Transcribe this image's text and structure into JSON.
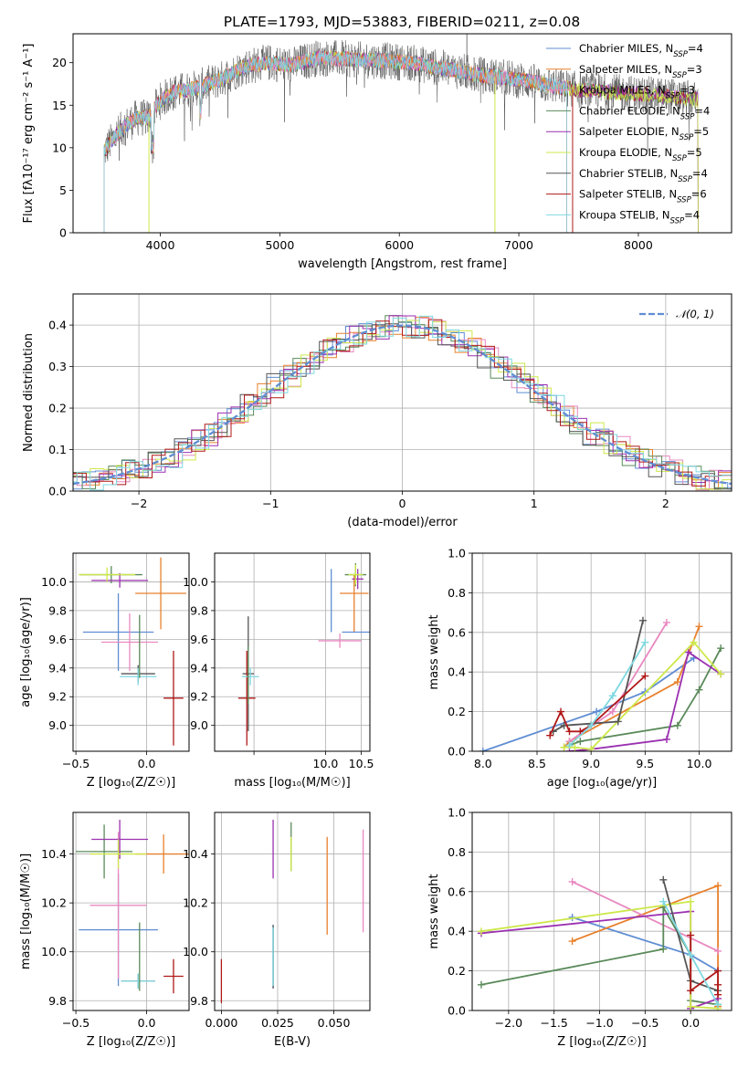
{
  "colors": {
    "chabrier_miles": "#5f8dd3",
    "salpeter_miles": "#e8802c",
    "kroupa_miles": "#e888c0",
    "chabrier_elodie": "#5a8a5a",
    "salpeter_elodie": "#9b30b0",
    "kroupa_elodie": "#cde84a",
    "chabrier_stelib": "#555555",
    "salpeter_stelib": "#b01818",
    "kroupa_stelib": "#7fd8e0",
    "normal_fit": "#5f8dd3"
  },
  "chart_data": [
    {
      "id": "spectrum",
      "type": "line",
      "title": "PLATE=1793, MJD=53883, FIBERID=0211, z=0.08",
      "xlabel": "wavelength [Angstrom, rest frame]",
      "ylabel": "Flux [fλ10⁻¹⁷ erg cm⁻² s⁻¹ A⁻¹]",
      "xlim": [
        3270,
        8780
      ],
      "ylim": [
        0,
        23.4
      ],
      "xticks": [
        4000,
        5000,
        6000,
        7000,
        8000
      ],
      "yticks": [
        0,
        5,
        10,
        15,
        20
      ],
      "grid": false,
      "legend_position": "upper right",
      "envelope": [
        [
          3530,
          9.5
        ],
        [
          3600,
          11
        ],
        [
          3700,
          12.5
        ],
        [
          3800,
          13.5
        ],
        [
          3900,
          13.5
        ],
        [
          4000,
          15.5
        ],
        [
          4100,
          16.5
        ],
        [
          4300,
          17
        ],
        [
          4500,
          18
        ],
        [
          4700,
          19.5
        ],
        [
          4900,
          20
        ],
        [
          5100,
          19.7
        ],
        [
          5300,
          20.5
        ],
        [
          5500,
          20.5
        ],
        [
          5700,
          20.3
        ],
        [
          5900,
          20.2
        ],
        [
          6100,
          20
        ],
        [
          6300,
          19.5
        ],
        [
          6500,
          19
        ],
        [
          6700,
          18.5
        ],
        [
          6900,
          18.2
        ],
        [
          7100,
          17.8
        ],
        [
          7300,
          17.2
        ],
        [
          7500,
          16.8
        ],
        [
          7700,
          16.6
        ],
        [
          7900,
          16.4
        ],
        [
          8100,
          16.2
        ],
        [
          8300,
          16
        ],
        [
          8500,
          15.6
        ]
      ],
      "legend": [
        {
          "label": "Chabrier MILES, N",
          "sub": "SSP",
          "tail": "=4",
          "color_key": "chabrier_miles"
        },
        {
          "label": "Salpeter MILES, N",
          "sub": "SSP",
          "tail": "=3",
          "color_key": "salpeter_miles"
        },
        {
          "label": "Kroupa MILES, N",
          "sub": "SSP",
          "tail": "=3",
          "color_key": "kroupa_miles"
        },
        {
          "label": "Chabrier ELODIE, N",
          "sub": "SSP",
          "tail": "=4",
          "color_key": "chabrier_elodie"
        },
        {
          "label": "Salpeter ELODIE, N",
          "sub": "SSP",
          "tail": "=5",
          "color_key": "salpeter_elodie"
        },
        {
          "label": "Kroupa ELODIE, N",
          "sub": "SSP",
          "tail": "=5",
          "color_key": "kroupa_elodie"
        },
        {
          "label": "Chabrier STELIB, N",
          "sub": "SSP",
          "tail": "=4",
          "color_key": "chabrier_stelib"
        },
        {
          "label": "Salpeter STELIB, N",
          "sub": "SSP",
          "tail": "=6",
          "color_key": "salpeter_stelib"
        },
        {
          "label": "Kroupa STELIB, N",
          "sub": "SSP",
          "tail": "=4",
          "color_key": "kroupa_stelib"
        }
      ]
    },
    {
      "id": "residuals",
      "type": "step-histogram",
      "xlabel": "(data-model)/error",
      "ylabel": "Normed distribution",
      "xlim": [
        -2.5,
        2.5
      ],
      "ylim": [
        0,
        0.475
      ],
      "xticks": [
        -2,
        -1,
        0,
        1,
        2
      ],
      "xtick_labels": [
        "−2",
        "−1",
        "0",
        "1",
        "2"
      ],
      "yticks": [
        0.0,
        0.1,
        0.2,
        0.3,
        0.4
      ],
      "ytick_labels": [
        "0.0",
        "0.1",
        "0.2",
        "0.3",
        "0.4"
      ],
      "grid": true,
      "legend_position": "upper right",
      "fit_label": "𝒩(0, 1)",
      "bin_width": 0.1
    },
    {
      "id": "z-vs-age",
      "type": "errorbar",
      "xlabel": "Z [log₁₀(Z/Z☉)]",
      "ylabel": "age  [log₁₀(age/yr)]",
      "xlim": [
        -0.52,
        0.3
      ],
      "ylim": [
        8.82,
        10.2
      ],
      "xticks": [
        -0.5,
        0.0
      ],
      "xtick_labels": [
        "−0.5",
        "0.0"
      ],
      "yticks": [
        9.0,
        9.2,
        9.4,
        9.6,
        9.8,
        10.0
      ],
      "ytick_labels": [
        "9.0",
        "9.2",
        "9.4",
        "9.6",
        "9.8",
        "10.0"
      ],
      "grid": true,
      "points": [
        {
          "c": "chabrier_miles",
          "x": -0.2,
          "xe": 0.25,
          "y": 9.65,
          "ye": 0.27
        },
        {
          "c": "salpeter_miles",
          "x": 0.1,
          "xe": 0.18,
          "y": 9.92,
          "ye": 0.25
        },
        {
          "c": "kroupa_miles",
          "x": -0.12,
          "xe": 0.2,
          "y": 9.58,
          "ye": 0.2
        },
        {
          "c": "chabrier_elodie",
          "x": -0.25,
          "xe": 0.22,
          "y": 10.05,
          "ye": 0.06
        },
        {
          "c": "salpeter_elodie",
          "x": -0.19,
          "xe": 0.2,
          "y": 10.01,
          "ye": 0.05
        },
        {
          "c": "kroupa_elodie",
          "x": -0.28,
          "xe": 0.2,
          "y": 10.05,
          "ye": 0.05
        },
        {
          "c": "chabrier_stelib",
          "x": -0.06,
          "xe": 0.12,
          "y": 9.36,
          "ye": 0.06
        },
        {
          "c": "salpeter_stelib",
          "x": 0.19,
          "xe": 0.07,
          "y": 9.19,
          "ye": 0.33
        },
        {
          "c": "kroupa_stelib",
          "x": -0.06,
          "xe": 0.13,
          "y": 9.34,
          "ye": 0.06
        },
        {
          "c": "chabrier_elodie",
          "x": -0.05,
          "xe": 0.0,
          "y": 9.55,
          "ye": 0.22
        }
      ]
    },
    {
      "id": "mass-vs-age",
      "type": "errorbar",
      "xlabel": "mass [log₁₀(M/M☉)]",
      "ylabel": "",
      "xlim": [
        8.45,
        10.62
      ],
      "ylim": [
        8.82,
        10.2
      ],
      "xticks": [
        9.0,
        10.0,
        10.5
      ],
      "xtick_labels": [
        "",
        "10.0",
        "10.5"
      ],
      "yticks": [
        9.0,
        9.2,
        9.4,
        9.6,
        9.8,
        10.0
      ],
      "ytick_labels": [
        "9.0",
        "9.2",
        "9.4",
        "9.6",
        "9.8",
        "10.0"
      ],
      "grid": true,
      "points": [
        {
          "c": "chabrier_miles",
          "x": 10.08,
          "xe": 0.0,
          "y": 9.87,
          "ye": 0.22
        },
        {
          "c": "chabrier_miles",
          "x": 10.08,
          "xe": 0.0,
          "y": 9.65,
          "ye": 0.0
        },
        {
          "c": "salpeter_miles",
          "x": 10.4,
          "xe": 0.0,
          "y": 9.85,
          "ye": 0.2
        },
        {
          "c": "salpeter_miles",
          "x": 10.4,
          "xe": 0.2,
          "y": 9.92,
          "ye": 0.0
        },
        {
          "c": "chabrier_miles",
          "x": 10.45,
          "xe": 0.22,
          "y": 9.65,
          "ye": 0.0
        },
        {
          "c": "kroupa_miles",
          "x": 10.2,
          "xe": 0.3,
          "y": 9.59,
          "ye": 0.05
        },
        {
          "c": "chabrier_elodie",
          "x": 10.42,
          "xe": 0.15,
          "y": 10.05,
          "ye": 0.08
        },
        {
          "c": "salpeter_elodie",
          "x": 10.45,
          "xe": 0.08,
          "y": 10.02,
          "ye": 0.07
        },
        {
          "c": "kroupa_elodie",
          "x": 10.42,
          "xe": 0.1,
          "y": 10.05,
          "ye": 0.07
        },
        {
          "c": "chabrier_stelib",
          "x": 8.92,
          "xe": 0.08,
          "y": 9.36,
          "ye": 0.4
        },
        {
          "c": "salpeter_stelib",
          "x": 8.9,
          "xe": 0.12,
          "y": 9.19,
          "ye": 0.33
        },
        {
          "c": "kroupa_stelib",
          "x": 8.95,
          "xe": 0.12,
          "y": 9.34,
          "ye": 0.06
        },
        {
          "c": "chabrier_elodie",
          "x": 8.92,
          "xe": 0.0,
          "y": 9.35,
          "ye": 0.2
        }
      ]
    },
    {
      "id": "age-mass-weight",
      "type": "line",
      "xlabel": "age  [log₁₀(age/yr)]",
      "ylabel": "mass weight",
      "xlim": [
        7.9,
        10.3
      ],
      "ylim": [
        0,
        1.0
      ],
      "xticks": [
        8.0,
        8.5,
        9.0,
        9.5,
        10.0
      ],
      "xtick_labels": [
        "8.0",
        "8.5",
        "9.0",
        "9.5",
        "10.0"
      ],
      "yticks": [
        0.0,
        0.2,
        0.4,
        0.6,
        0.8,
        1.0
      ],
      "ytick_labels": [
        "0.0",
        "0.2",
        "0.4",
        "0.6",
        "0.8",
        "1.0"
      ],
      "grid": true,
      "series": [
        {
          "c": "chabrier_miles",
          "x": [
            8.0,
            9.05,
            9.5,
            9.95
          ],
          "y": [
            0.0,
            0.2,
            0.3,
            0.47
          ]
        },
        {
          "c": "salpeter_miles",
          "x": [
            8.75,
            8.8,
            9.8,
            10.0
          ],
          "y": [
            0.02,
            0.05,
            0.35,
            0.63
          ]
        },
        {
          "c": "kroupa_miles",
          "x": [
            8.8,
            9.2,
            9.7
          ],
          "y": [
            0.05,
            0.2,
            0.65
          ]
        },
        {
          "c": "chabrier_elodie",
          "x": [
            8.8,
            8.9,
            9.8,
            10.0,
            10.2
          ],
          "y": [
            0.03,
            0.05,
            0.13,
            0.31,
            0.52
          ]
        },
        {
          "c": "salpeter_elodie",
          "x": [
            8.8,
            9.0,
            9.7,
            9.9,
            10.2
          ],
          "y": [
            0.0,
            0.01,
            0.06,
            0.5,
            0.39
          ]
        },
        {
          "c": "kroupa_elodie",
          "x": [
            8.75,
            8.85,
            9.0,
            9.95,
            10.2
          ],
          "y": [
            0.02,
            0.02,
            0.01,
            0.55,
            0.39
          ]
        },
        {
          "c": "chabrier_stelib",
          "x": [
            8.65,
            8.75,
            9.25,
            9.48
          ],
          "y": [
            0.1,
            0.13,
            0.15,
            0.66
          ]
        },
        {
          "c": "salpeter_stelib",
          "x": [
            8.62,
            8.72,
            8.8,
            8.9,
            9.0,
            9.5
          ],
          "y": [
            0.08,
            0.2,
            0.1,
            0.1,
            0.13,
            0.38
          ]
        },
        {
          "c": "kroupa_stelib",
          "x": [
            8.8,
            9.0,
            9.2,
            9.5
          ],
          "y": [
            0.03,
            0.13,
            0.28,
            0.55
          ]
        }
      ]
    },
    {
      "id": "z-vs-mass",
      "type": "errorbar",
      "xlabel": "Z [log₁₀(Z/Z☉)]",
      "ylabel": "mass [log₁₀(M/M☉)]",
      "xlim": [
        -0.52,
        0.3
      ],
      "ylim": [
        9.76,
        10.57
      ],
      "xticks": [
        -0.5,
        0.0
      ],
      "xtick_labels": [
        "−0.5",
        "0.0"
      ],
      "yticks": [
        9.8,
        10.0,
        10.2,
        10.4
      ],
      "ytick_labels": [
        "9.8",
        "10.0",
        "10.2",
        "10.4"
      ],
      "grid": true,
      "points": [
        {
          "c": "chabrier_miles",
          "x": -0.2,
          "xe": 0.28,
          "y": 10.09,
          "ye": 0.23
        },
        {
          "c": "salpeter_miles",
          "x": 0.12,
          "xe": 0.2,
          "y": 10.4,
          "ye": 0.08
        },
        {
          "c": "kroupa_miles",
          "x": -0.2,
          "xe": 0.2,
          "y": 10.19,
          "ye": 0.3
        },
        {
          "c": "chabrier_elodie",
          "x": -0.3,
          "xe": 0.2,
          "y": 10.41,
          "ye": 0.11
        },
        {
          "c": "salpeter_elodie",
          "x": -0.19,
          "xe": 0.2,
          "y": 10.46,
          "ye": 0.08
        },
        {
          "c": "kroupa_elodie",
          "x": -0.2,
          "xe": 0.2,
          "y": 10.4,
          "ye": 0.06
        },
        {
          "c": "chabrier_stelib",
          "x": -0.06,
          "xe": 0.12,
          "y": 9.88,
          "ye": 0.03
        },
        {
          "c": "salpeter_stelib",
          "x": 0.19,
          "xe": 0.07,
          "y": 9.9,
          "ye": 0.07
        },
        {
          "c": "kroupa_stelib",
          "x": -0.06,
          "xe": 0.12,
          "y": 9.88,
          "ye": 0.03
        },
        {
          "c": "chabrier_elodie",
          "x": -0.05,
          "xe": 0.0,
          "y": 9.98,
          "ye": 0.14
        }
      ]
    },
    {
      "id": "ebv-vs-mass",
      "type": "errorbar",
      "xlabel": "E(B-V)",
      "ylabel": "",
      "xlim": [
        -0.003,
        0.066
      ],
      "ylim": [
        9.76,
        10.57
      ],
      "xticks": [
        0.0,
        0.025,
        0.05
      ],
      "xtick_labels": [
        "0.000",
        "0.025",
        "0.050"
      ],
      "yticks": [
        9.8,
        10.0,
        10.2,
        10.4
      ],
      "ytick_labels": [
        "9.8",
        "10.0",
        "10.2",
        "10.4"
      ],
      "grid": true,
      "points": [
        {
          "c": "chabrier_miles",
          "x": 0.023,
          "xe": 0.0,
          "y": 9.98,
          "ye": 0.13
        },
        {
          "c": "salpeter_miles",
          "x": 0.047,
          "xe": 0.0,
          "y": 10.27,
          "ye": 0.2
        },
        {
          "c": "kroupa_miles",
          "x": 0.063,
          "xe": 0.0,
          "y": 10.29,
          "ye": 0.21
        },
        {
          "c": "chabrier_elodie",
          "x": 0.031,
          "xe": 0.0,
          "y": 10.43,
          "ye": 0.1
        },
        {
          "c": "salpeter_elodie",
          "x": 0.023,
          "xe": 0.0,
          "y": 10.42,
          "ye": 0.12
        },
        {
          "c": "kroupa_elodie",
          "x": 0.031,
          "xe": 0.0,
          "y": 10.4,
          "ye": 0.07
        },
        {
          "c": "chabrier_stelib",
          "x": 0.023,
          "xe": 0.0,
          "y": 9.98,
          "ye": 0.13
        },
        {
          "c": "salpeter_stelib",
          "x": 0.0,
          "xe": 0.0,
          "y": 9.88,
          "ye": 0.09
        },
        {
          "c": "kroupa_stelib",
          "x": 0.023,
          "xe": 0.0,
          "y": 9.98,
          "ye": 0.12
        }
      ]
    },
    {
      "id": "z-mass-weight",
      "type": "line",
      "xlabel": "Z [log₁₀(Z/Z☉)]",
      "ylabel": "mass weight",
      "xlim": [
        -2.4,
        0.45
      ],
      "ylim": [
        0,
        1.0
      ],
      "xticks": [
        -2.0,
        -1.5,
        -1.0,
        -0.5,
        0.0
      ],
      "xtick_labels": [
        "−2.0",
        "−1.5",
        "−1.0",
        "−0.5",
        "0.0"
      ],
      "yticks": [
        0.0,
        0.2,
        0.4,
        0.6,
        0.8,
        1.0
      ],
      "ytick_labels": [
        "0.0",
        "0.2",
        "0.4",
        "0.6",
        "0.8",
        "1.0"
      ],
      "grid": true,
      "series": [
        {
          "c": "chabrier_miles",
          "x": [
            -1.3,
            0.0,
            0.3
          ],
          "y": [
            0.47,
            0.28,
            0.2
          ]
        },
        {
          "c": "salpeter_miles",
          "x": [
            -1.3,
            0.3,
            0.3
          ],
          "y": [
            0.35,
            0.63,
            0.02
          ]
        },
        {
          "c": "kroupa_miles",
          "x": [
            -1.3,
            0.3
          ],
          "y": [
            0.65,
            0.3
          ]
        },
        {
          "c": "chabrier_elodie",
          "x": [
            -2.3,
            -0.3,
            -0.3,
            0.0,
            0.0,
            0.3
          ],
          "y": [
            0.13,
            0.31,
            0.52,
            0.28,
            0.05,
            0.03
          ]
        },
        {
          "c": "salpeter_elodie",
          "x": [
            -2.3,
            0.0,
            0.0,
            0.3
          ],
          "y": [
            0.39,
            0.5,
            0.01,
            0.06
          ]
        },
        {
          "c": "kroupa_elodie",
          "x": [
            -2.3,
            0.0,
            0.0,
            0.3
          ],
          "y": [
            0.4,
            0.55,
            0.02,
            0.01
          ]
        },
        {
          "c": "chabrier_stelib",
          "x": [
            -0.3,
            0.0,
            0.3
          ],
          "y": [
            0.66,
            0.15,
            0.1
          ]
        },
        {
          "c": "salpeter_stelib",
          "x": [
            0.0,
            0.0,
            0.3,
            0.3,
            0.3
          ],
          "y": [
            0.38,
            0.1,
            0.2,
            0.13,
            0.08
          ]
        },
        {
          "c": "kroupa_stelib",
          "x": [
            -0.3,
            0.0,
            0.3
          ],
          "y": [
            0.55,
            0.28,
            0.03
          ]
        }
      ]
    }
  ]
}
